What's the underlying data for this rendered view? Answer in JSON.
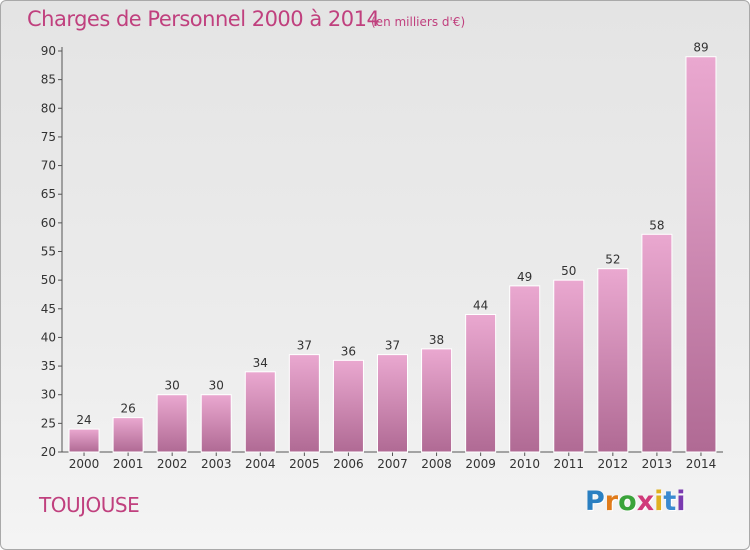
{
  "title": "Charges de Personnel 2000 à 2014",
  "subtitle": "(en milliers d'€)",
  "location": "TOUJOUSE",
  "logo": {
    "letters": [
      "P",
      "r",
      "o",
      "x",
      "i",
      "t",
      "i"
    ],
    "colors": [
      "#2a7fc1",
      "#e07b1a",
      "#3aa33a",
      "#d03a7a",
      "#e0b020",
      "#3a8ad0",
      "#7a3ab0"
    ]
  },
  "colors": {
    "accent": "#c0407e",
    "bar_top": "#eaa8d0",
    "bar_bottom": "#b06a94"
  },
  "chart_data": {
    "type": "bar",
    "title": "Charges de Personnel 2000 à 2014",
    "subtitle": "(en milliers d'€)",
    "categories": [
      "2000",
      "2001",
      "2002",
      "2003",
      "2004",
      "2005",
      "2006",
      "2007",
      "2008",
      "2009",
      "2010",
      "2011",
      "2012",
      "2013",
      "2014"
    ],
    "values": [
      24,
      26,
      30,
      30,
      34,
      37,
      36,
      37,
      38,
      44,
      49,
      50,
      52,
      58,
      89
    ],
    "ylim": [
      20,
      90
    ],
    "yticks": [
      20,
      25,
      30,
      35,
      40,
      45,
      50,
      55,
      60,
      65,
      70,
      75,
      80,
      85,
      90
    ],
    "grid": false,
    "data_labels": true,
    "legend": "none"
  }
}
